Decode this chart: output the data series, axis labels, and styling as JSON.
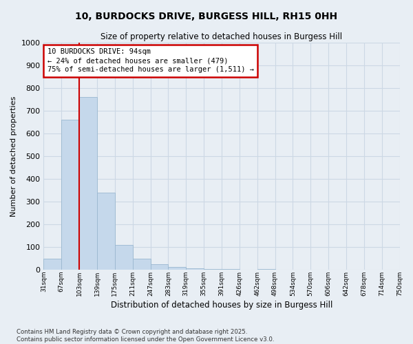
{
  "title": "10, BURDOCKS DRIVE, BURGESS HILL, RH15 0HH",
  "subtitle": "Size of property relative to detached houses in Burgess Hill",
  "xlabel": "Distribution of detached houses by size in Burgess Hill",
  "ylabel": "Number of detached properties",
  "bin_labels": [
    "31sqm",
    "67sqm",
    "103sqm",
    "139sqm",
    "175sqm",
    "211sqm",
    "247sqm",
    "283sqm",
    "319sqm",
    "355sqm",
    "391sqm",
    "426sqm",
    "462sqm",
    "498sqm",
    "534sqm",
    "570sqm",
    "606sqm",
    "642sqm",
    "678sqm",
    "714sqm",
    "750sqm"
  ],
  "bar_values": [
    50,
    660,
    760,
    340,
    110,
    50,
    25,
    12,
    8,
    5,
    3,
    0,
    5,
    0,
    0,
    0,
    0,
    0,
    0,
    0
  ],
  "bar_color": "#c5d8eb",
  "bar_edge_color": "#9ab8d0",
  "red_line_x": 2.0,
  "ylim": [
    0,
    1000
  ],
  "yticks": [
    0,
    100,
    200,
    300,
    400,
    500,
    600,
    700,
    800,
    900,
    1000
  ],
  "grid_color": "#ccd8e4",
  "annotation_text": "10 BURDOCKS DRIVE: 94sqm\n← 24% of detached houses are smaller (479)\n75% of semi-detached houses are larger (1,511) →",
  "annotation_box_color": "#ffffff",
  "annotation_box_edge": "#cc0000",
  "red_line_color": "#cc0000",
  "footer_line1": "Contains HM Land Registry data © Crown copyright and database right 2025.",
  "footer_line2": "Contains public sector information licensed under the Open Government Licence v3.0.",
  "background_color": "#e8eef4",
  "plot_bg_color": "#e8eef4"
}
